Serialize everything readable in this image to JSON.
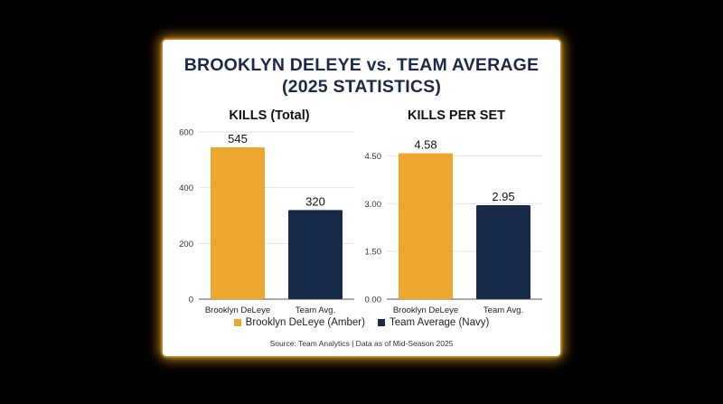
{
  "title_line1": "BROOKLYN DELEYE vs. TEAM AVERAGE",
  "title_line2": "(2025 STATISTICS)",
  "colors": {
    "amber": "#EDA62E",
    "navy": "#172A4A"
  },
  "chart_data": [
    {
      "type": "bar",
      "title": "KILLS (Total)",
      "categories": [
        "Brooklyn DeLeye",
        "Team Avg."
      ],
      "values": [
        545,
        320
      ],
      "value_labels": [
        "545",
        "320"
      ],
      "ylim": [
        0,
        600
      ],
      "yticks": [
        0,
        200,
        400,
        600
      ],
      "ytick_labels": [
        "0",
        "200",
        "400",
        "600"
      ],
      "grid": true
    },
    {
      "type": "bar",
      "title": "KILLS PER SET",
      "categories": [
        "Brooklyn DeLeye",
        "Team Avg."
      ],
      "values": [
        4.58,
        2.95
      ],
      "value_labels": [
        "4.58",
        "2.95"
      ],
      "ylim": [
        0,
        5.25
      ],
      "yticks": [
        0,
        1.5,
        3.0,
        4.5
      ],
      "ytick_labels": [
        "0.00",
        "1.50",
        "3.00",
        "4.50"
      ],
      "grid": true
    }
  ],
  "legend": [
    {
      "label": "Brooklyn DeLeye (Amber)",
      "color": "#EDA62E"
    },
    {
      "label": "Team Average (Navy)",
      "color": "#172A4A"
    }
  ],
  "legend_position": "bottom",
  "source": "Source: Team Analytics | Data as of Mid-Season 2025"
}
